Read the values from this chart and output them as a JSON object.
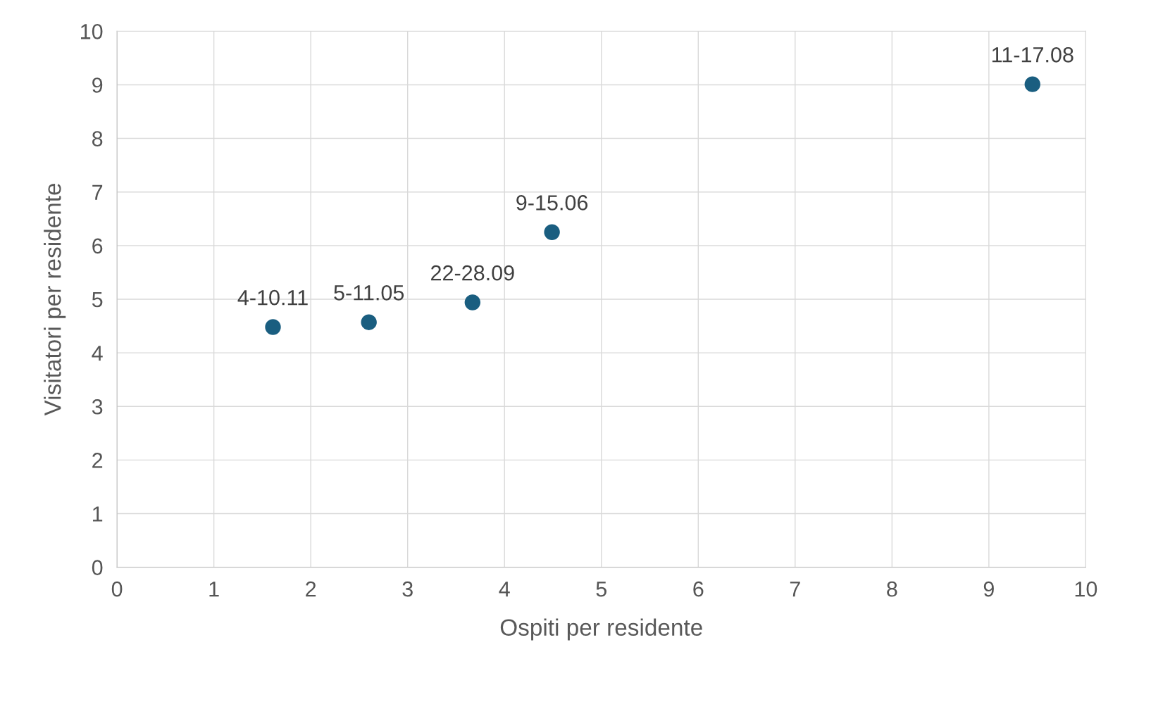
{
  "chart_data": {
    "type": "scatter",
    "xlabel": "Ospiti per residente",
    "ylabel": "Visitatori per residente",
    "x": [
      1.61,
      2.6,
      3.67,
      4.49,
      9.45
    ],
    "series": [
      {
        "color": "#1a5e80",
        "values": [
          4.48,
          4.57,
          4.94,
          6.25,
          9.01
        ]
      }
    ],
    "xlim": [
      0,
      10
    ],
    "ylim": [
      0,
      10
    ],
    "xticks": [
      0,
      1,
      2,
      3,
      4,
      5,
      6,
      7,
      8,
      9,
      10
    ],
    "yticks": [
      0,
      1,
      2,
      3,
      4,
      5,
      6,
      7,
      8,
      9,
      10
    ],
    "grid": true,
    "legend": false,
    "marker": "circle",
    "annotations": [
      {
        "text": "4-10.11",
        "x": 1.61,
        "y": 4.48
      },
      {
        "text": "5-11.05",
        "x": 2.6,
        "y": 4.57
      },
      {
        "text": "22-28.09",
        "x": 3.67,
        "y": 4.94
      },
      {
        "text": "9-15.06",
        "x": 4.49,
        "y": 6.25
      },
      {
        "text": "11-17.08",
        "x": 9.45,
        "y": 9.01
      }
    ]
  }
}
